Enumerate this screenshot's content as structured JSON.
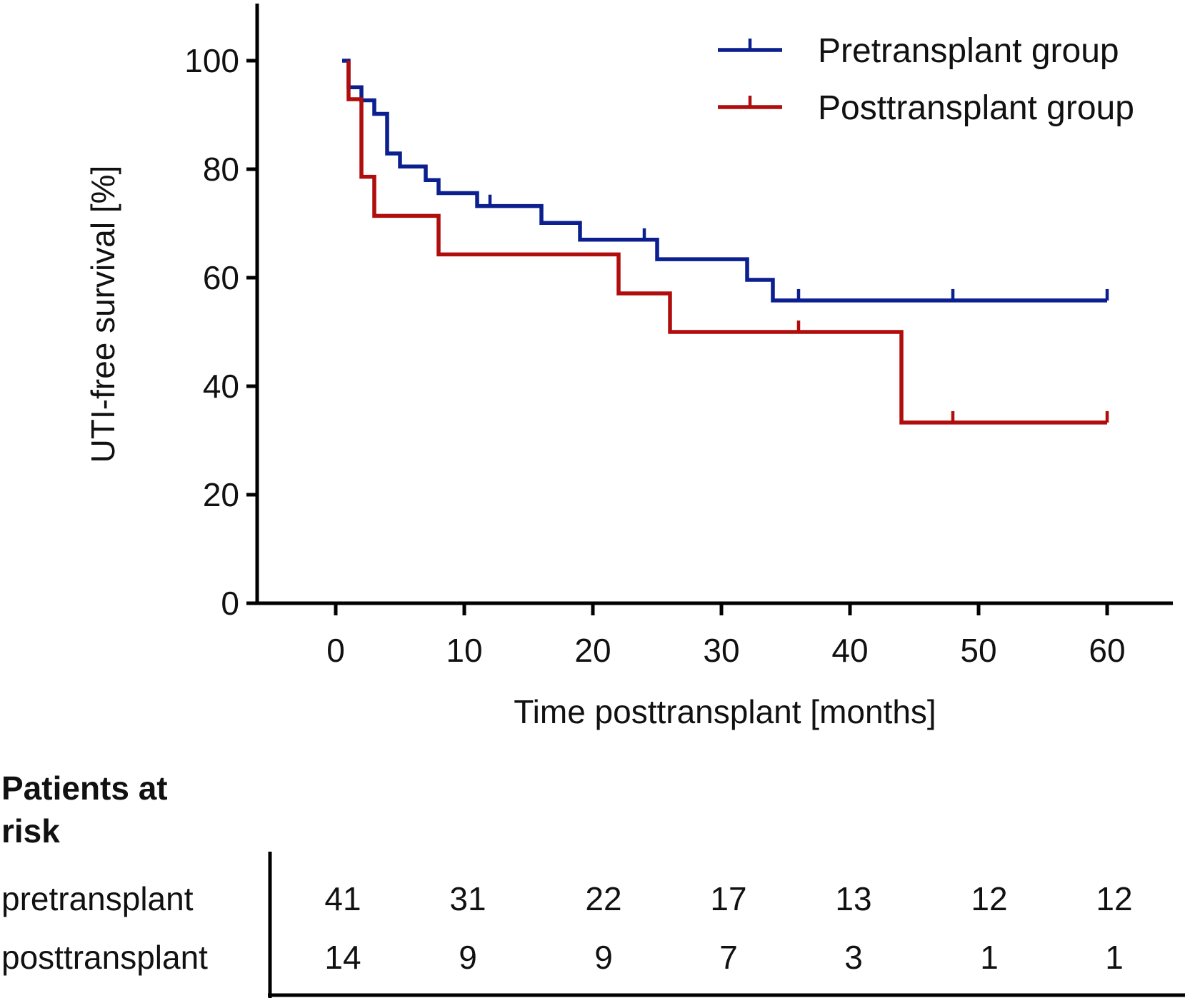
{
  "chart_data": {
    "type": "line",
    "subtype": "kaplan-meier step",
    "xlabel": "Time posttransplant [months]",
    "ylabel": "UTI-free survival [%]",
    "xlim": [
      -5,
      65
    ],
    "ylim": [
      0,
      110
    ],
    "xticks": [
      0,
      10,
      20,
      30,
      40,
      50,
      60
    ],
    "yticks": [
      0,
      20,
      40,
      60,
      80,
      100
    ],
    "grid": false,
    "legend_position": "top-right",
    "series": [
      {
        "name": "Pretransplant group",
        "color": "#0b1f8f",
        "steps": [
          [
            0.5,
            100
          ],
          [
            1,
            95.1
          ],
          [
            2,
            92.7
          ],
          [
            3,
            90.2
          ],
          [
            4,
            82.9
          ],
          [
            5,
            80.5
          ],
          [
            7,
            78.0
          ],
          [
            8,
            75.6
          ],
          [
            11,
            73.2
          ],
          [
            16,
            70.1
          ],
          [
            19,
            67.0
          ],
          [
            25,
            63.4
          ],
          [
            32,
            59.6
          ],
          [
            34,
            55.8
          ],
          [
            60,
            55.8
          ]
        ],
        "censored": [
          [
            12,
            73.2
          ],
          [
            24,
            67.0
          ],
          [
            36,
            55.8
          ],
          [
            48,
            55.8
          ],
          [
            60,
            55.8
          ]
        ]
      },
      {
        "name": "Posttransplant group",
        "color": "#b00d0d",
        "steps": [
          [
            1,
            100
          ],
          [
            1,
            92.9
          ],
          [
            2,
            78.6
          ],
          [
            3,
            71.4
          ],
          [
            8,
            64.3
          ],
          [
            22,
            57.1
          ],
          [
            26,
            50.0
          ],
          [
            44,
            33.3
          ],
          [
            60,
            33.3
          ]
        ],
        "censored": [
          [
            36,
            50.0
          ],
          [
            48,
            33.3
          ],
          [
            60,
            33.3
          ]
        ]
      }
    ]
  },
  "risk_table": {
    "title": "Patients at risk",
    "title_line1": "Patients at",
    "title_line2": "risk",
    "rows": [
      {
        "label": "pretransplant",
        "values": [
          "41",
          "31",
          "22",
          "17",
          "13",
          "12",
          "12"
        ]
      },
      {
        "label": "posttransplant",
        "values": [
          "14",
          "9",
          "9",
          "7",
          "3",
          "1",
          "1"
        ]
      }
    ]
  }
}
